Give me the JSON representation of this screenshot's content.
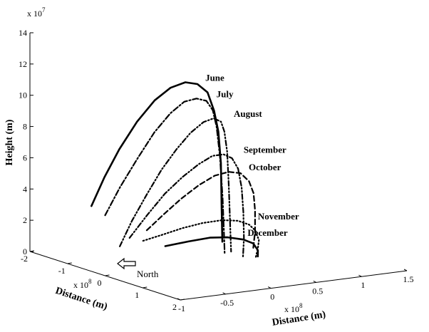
{
  "chart_data": {
    "type": "line",
    "projection": "3d",
    "axes": {
      "z": {
        "label": "Height (m)",
        "exponent_label": "x 10",
        "exponent": "7",
        "range": [
          0,
          14
        ],
        "ticks": [
          {
            "value": 0,
            "label": "0"
          },
          {
            "value": 2,
            "label": "2"
          },
          {
            "value": 4,
            "label": "4"
          },
          {
            "value": 6,
            "label": "6"
          },
          {
            "value": 8,
            "label": "8"
          },
          {
            "value": 10,
            "label": "10"
          },
          {
            "value": 12,
            "label": "12"
          },
          {
            "value": 14,
            "label": "14"
          }
        ]
      },
      "y": {
        "label": "Distance (m)",
        "exponent_label": "x 10",
        "exponent": "8",
        "range": [
          -2,
          2
        ],
        "ticks": [
          {
            "value": -2,
            "label": "-2"
          },
          {
            "value": -1,
            "label": "-1"
          },
          {
            "value": 0,
            "label": "0"
          },
          {
            "value": 1,
            "label": "1"
          },
          {
            "value": 2,
            "label": "2"
          }
        ]
      },
      "x": {
        "label": "Distance (m)",
        "exponent_label": "x 10",
        "exponent": "8",
        "range": [
          -1,
          1.5
        ],
        "ticks": [
          {
            "value": -1,
            "label": "-1"
          },
          {
            "value": -0.5,
            "label": "-0.5"
          },
          {
            "value": 0,
            "label": "0"
          },
          {
            "value": 0.5,
            "label": "0.5"
          },
          {
            "value": 1,
            "label": "1"
          },
          {
            "value": 1.5,
            "label": "1.5"
          }
        ]
      }
    },
    "annotation": {
      "text": "North",
      "symbol": "arrow"
    },
    "series": [
      {
        "name": "June",
        "style": "solid",
        "points": [
          [
            -0.55,
            -1.45,
            3.0
          ],
          [
            -0.51,
            -1.2,
            5.0
          ],
          [
            -0.47,
            -0.9,
            7.0
          ],
          [
            -0.42,
            -0.55,
            9.0
          ],
          [
            -0.37,
            -0.2,
            10.6
          ],
          [
            -0.32,
            0.1,
            11.6
          ],
          [
            -0.26,
            0.35,
            12.1
          ],
          [
            -0.21,
            0.55,
            12.1
          ],
          [
            -0.14,
            0.65,
            11.6
          ],
          [
            -0.08,
            0.68,
            10.4
          ],
          [
            -0.02,
            0.65,
            9.0
          ],
          [
            0.07,
            0.5,
            6.8
          ],
          [
            0.16,
            0.3,
            4.0
          ],
          [
            0.26,
            0.08,
            1.3
          ]
        ]
      },
      {
        "name": "July",
        "style": "dashdot",
        "points": [
          [
            -0.44,
            -1.35,
            2.4
          ],
          [
            -0.4,
            -1.05,
            4.4
          ],
          [
            -0.35,
            -0.7,
            6.5
          ],
          [
            -0.31,
            -0.35,
            8.4
          ],
          [
            -0.26,
            -0.05,
            9.8
          ],
          [
            -0.21,
            0.2,
            10.7
          ],
          [
            -0.15,
            0.38,
            11.0
          ],
          [
            -0.09,
            0.5,
            10.9
          ],
          [
            -0.04,
            0.55,
            10.3
          ],
          [
            0.01,
            0.53,
            9.2
          ],
          [
            0.08,
            0.45,
            7.2
          ],
          [
            0.18,
            0.28,
            4.3
          ],
          [
            0.28,
            0.08,
            1.6
          ],
          [
            0.34,
            -0.05,
            0.3
          ]
        ]
      },
      {
        "name": "August",
        "style": "dashdotdot",
        "points": [
          [
            -0.32,
            -1.25,
            0.4
          ],
          [
            -0.29,
            -1.0,
            2.2
          ],
          [
            -0.25,
            -0.7,
            4.1
          ],
          [
            -0.21,
            -0.4,
            5.9
          ],
          [
            -0.17,
            -0.1,
            7.4
          ],
          [
            -0.12,
            0.15,
            8.6
          ],
          [
            -0.06,
            0.35,
            9.4
          ],
          [
            0.0,
            0.48,
            9.7
          ],
          [
            0.05,
            0.55,
            9.5
          ],
          [
            0.1,
            0.52,
            8.8
          ],
          [
            0.16,
            0.45,
            7.4
          ],
          [
            0.24,
            0.3,
            5.0
          ],
          [
            0.33,
            0.12,
            2.3
          ],
          [
            0.39,
            0.0,
            0.5
          ]
        ]
      },
      {
        "name": "September",
        "style": "dashdotdot",
        "points": [
          [
            -0.15,
            -1.4,
            0.7
          ],
          [
            -0.1,
            -1.05,
            2.4
          ],
          [
            -0.05,
            -0.7,
            4.0
          ],
          [
            0.0,
            -0.35,
            5.3
          ],
          [
            0.05,
            -0.05,
            6.3
          ],
          [
            0.1,
            0.2,
            7.0
          ],
          [
            0.15,
            0.38,
            7.2
          ],
          [
            0.2,
            0.48,
            7.0
          ],
          [
            0.26,
            0.5,
            6.3
          ],
          [
            0.32,
            0.45,
            5.0
          ],
          [
            0.38,
            0.35,
            3.3
          ],
          [
            0.44,
            0.22,
            1.5
          ],
          [
            0.48,
            0.1,
            0.2
          ]
        ]
      },
      {
        "name": "October",
        "style": "dashed",
        "points": [
          [
            0.02,
            -1.35,
            1.1
          ],
          [
            0.07,
            -1.0,
            2.4
          ],
          [
            0.11,
            -0.65,
            3.6
          ],
          [
            0.16,
            -0.3,
            4.7
          ],
          [
            0.21,
            0.0,
            5.5
          ],
          [
            0.26,
            0.25,
            5.9
          ],
          [
            0.32,
            0.42,
            5.9
          ],
          [
            0.38,
            0.5,
            5.4
          ],
          [
            0.43,
            0.5,
            4.6
          ],
          [
            0.48,
            0.42,
            3.4
          ],
          [
            0.53,
            0.3,
            1.9
          ],
          [
            0.57,
            0.15,
            0.6
          ]
        ]
      },
      {
        "name": "November",
        "style": "dotted",
        "points": [
          [
            0.0,
            -1.4,
            0.4
          ],
          [
            0.06,
            -1.05,
            1.0
          ],
          [
            0.12,
            -0.65,
            1.7
          ],
          [
            0.18,
            -0.25,
            2.3
          ],
          [
            0.25,
            0.1,
            2.7
          ],
          [
            0.32,
            0.35,
            2.8
          ],
          [
            0.39,
            0.48,
            2.6
          ],
          [
            0.45,
            0.5,
            2.2
          ],
          [
            0.51,
            0.45,
            1.5
          ],
          [
            0.56,
            0.3,
            0.8
          ],
          [
            0.6,
            0.15,
            0.1
          ]
        ]
      },
      {
        "name": "December",
        "style": "solid",
        "points": [
          [
            0.12,
            -1.1,
            0.2
          ],
          [
            0.19,
            -0.65,
            0.8
          ],
          [
            0.26,
            -0.25,
            1.3
          ],
          [
            0.33,
            0.05,
            1.5
          ],
          [
            0.4,
            0.3,
            1.5
          ],
          [
            0.46,
            0.42,
            1.3
          ],
          [
            0.52,
            0.4,
            0.8
          ],
          [
            0.56,
            0.3,
            0.3
          ]
        ]
      }
    ]
  }
}
